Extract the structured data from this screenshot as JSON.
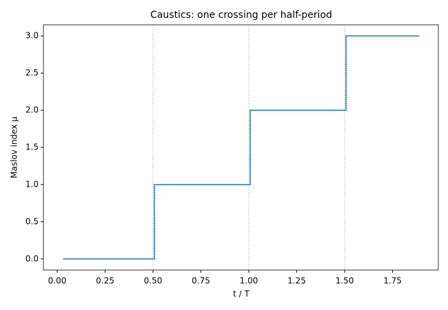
{
  "chart_data": {
    "type": "line",
    "title": "Caustics: one crossing per half-period",
    "xlabel": "t / T",
    "ylabel": "Maslov index μ",
    "x": [
      0.03,
      0.507,
      0.507,
      1.007,
      1.007,
      1.507,
      1.507,
      1.89
    ],
    "series": [
      {
        "name": "μ",
        "color": "#1f77b4",
        "values": [
          0,
          0,
          1,
          1,
          2,
          2,
          3,
          3
        ]
      }
    ],
    "vlines": [
      0.5,
      1.0,
      1.5
    ],
    "vline_color": "#808080",
    "xlim": [
      -0.072,
      1.989
    ],
    "ylim": [
      -0.15,
      3.15
    ],
    "xticks": [
      {
        "value": 0,
        "label": "0.00"
      },
      {
        "value": 0.25,
        "label": "0.25"
      },
      {
        "value": 0.5,
        "label": "0.50"
      },
      {
        "value": 0.75,
        "label": "0.75"
      },
      {
        "value": 1,
        "label": "1.00"
      },
      {
        "value": 1.25,
        "label": "1.25"
      },
      {
        "value": 1.5,
        "label": "1.50"
      },
      {
        "value": 1.75,
        "label": "1.75"
      }
    ],
    "yticks": [
      {
        "value": 0,
        "label": "0.0"
      },
      0.5,
      {
        "value": 1,
        "label": "1.0"
      },
      1.5,
      {
        "value": 2,
        "label": "2.0"
      },
      2.5,
      {
        "value": 3,
        "label": "3.0"
      }
    ],
    "grid": false
  }
}
